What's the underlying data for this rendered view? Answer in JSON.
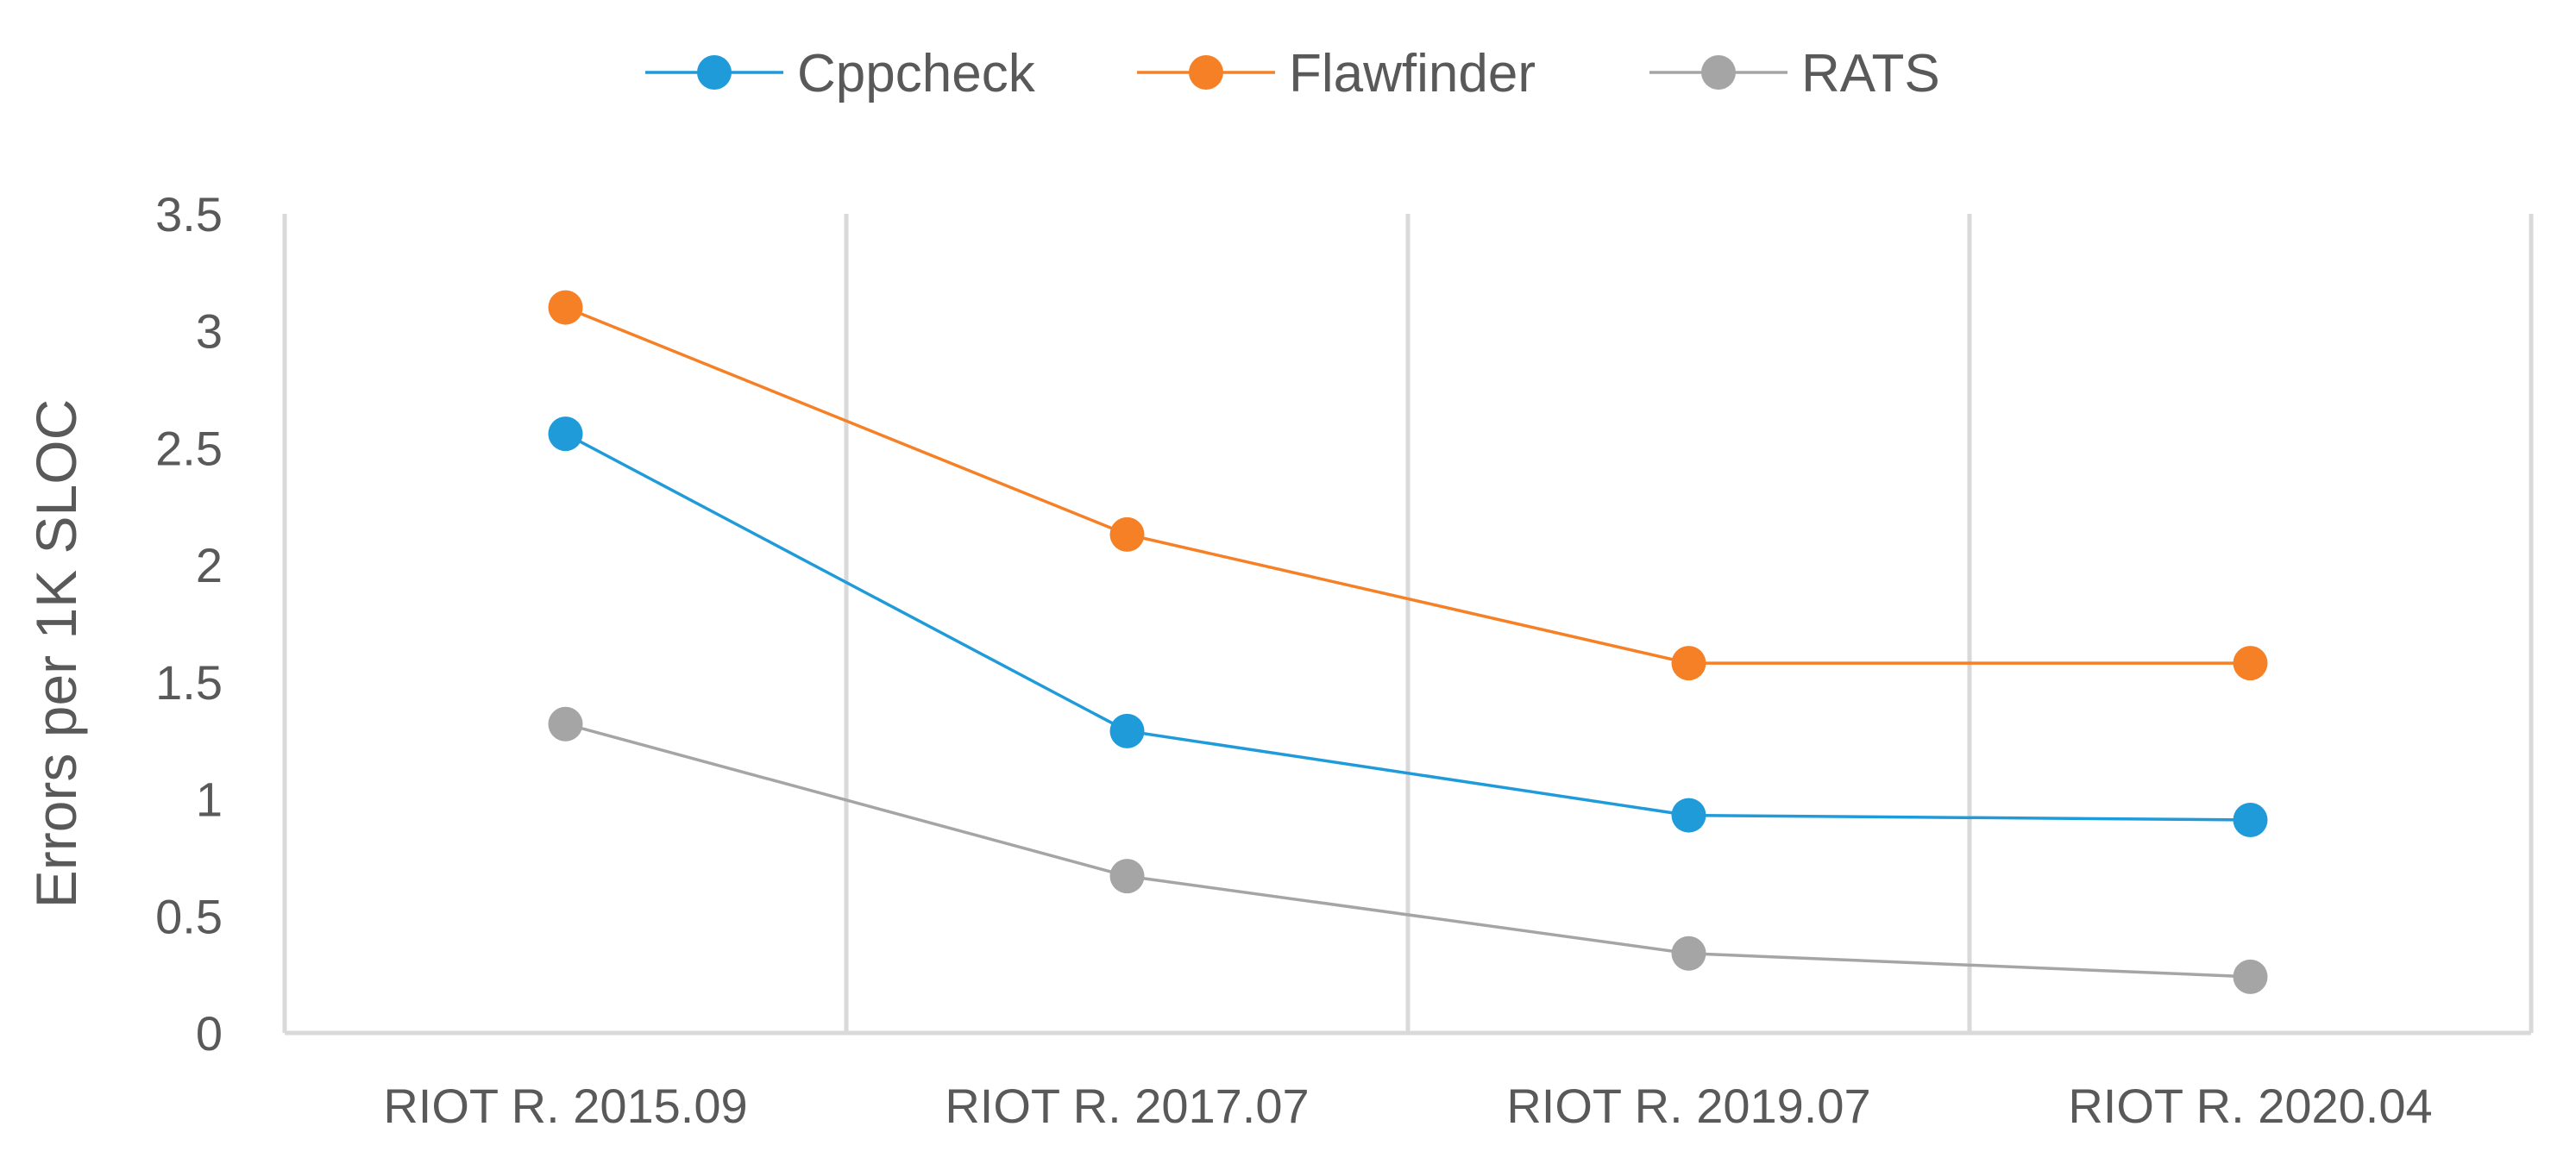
{
  "chart_data": {
    "type": "line",
    "title": "",
    "xlabel": "",
    "ylabel": "Errors per 1K SLOC",
    "ylim": [
      0,
      3.5
    ],
    "yticks": [
      "0",
      "0.5",
      "1",
      "1.5",
      "2",
      "2.5",
      "3",
      "3.5"
    ],
    "categories": [
      "RIOT R. 2015.09",
      "RIOT R. 2017.07",
      "RIOT R. 2019.07",
      "RIOT R. 2020.04"
    ],
    "legend_position": "top",
    "series": [
      {
        "name": "Cppcheck",
        "color": "#1F9BDA",
        "values": [
          2.56,
          1.29,
          0.93,
          0.91
        ]
      },
      {
        "name": "Flawfinder",
        "color": "#F58026",
        "values": [
          3.1,
          2.13,
          1.58,
          1.58
        ]
      },
      {
        "name": "RATS",
        "color": "#A5A5A5",
        "values": [
          1.32,
          0.67,
          0.34,
          0.24
        ]
      }
    ]
  }
}
